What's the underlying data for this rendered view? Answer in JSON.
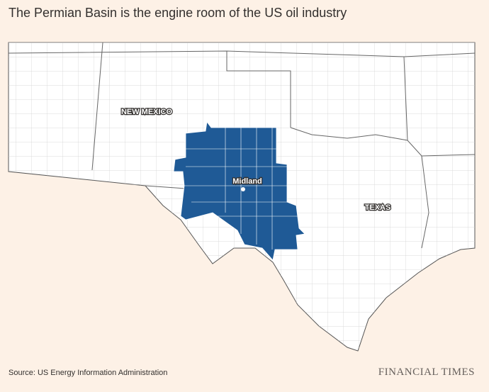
{
  "title": "The Permian Basin is the engine room of the US oil industry",
  "map": {
    "labels": {
      "new_mexico": "NEW MEXICO",
      "texas": "TEXAS",
      "city": "Midland"
    }
  },
  "footer": {
    "source": "Source: US Energy Information Administration",
    "brand": "FINANCIAL TIMES"
  }
}
